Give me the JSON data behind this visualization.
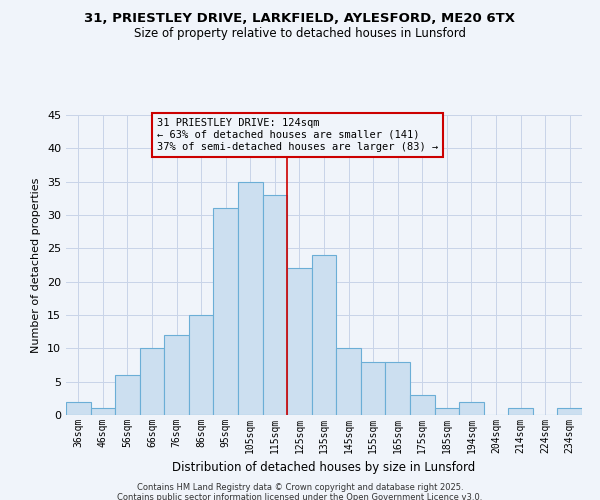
{
  "title_line1": "31, PRIESTLEY DRIVE, LARKFIELD, AYLESFORD, ME20 6TX",
  "title_line2": "Size of property relative to detached houses in Lunsford",
  "xlabel": "Distribution of detached houses by size in Lunsford",
  "ylabel": "Number of detached properties",
  "bar_labels": [
    "36sqm",
    "46sqm",
    "56sqm",
    "66sqm",
    "76sqm",
    "86sqm",
    "95sqm",
    "105sqm",
    "115sqm",
    "125sqm",
    "135sqm",
    "145sqm",
    "155sqm",
    "165sqm",
    "175sqm",
    "185sqm",
    "194sqm",
    "204sqm",
    "214sqm",
    "224sqm",
    "234sqm"
  ],
  "bar_values": [
    2,
    1,
    6,
    10,
    12,
    15,
    31,
    35,
    33,
    22,
    24,
    10,
    8,
    8,
    3,
    1,
    2,
    0,
    1,
    0,
    1
  ],
  "bar_color": "#ccdff0",
  "bar_edge_color": "#6baed6",
  "ylim": [
    0,
    45
  ],
  "yticks": [
    0,
    5,
    10,
    15,
    20,
    25,
    30,
    35,
    40,
    45
  ],
  "property_line_x": 8.5,
  "property_line_color": "#cc0000",
  "annotation_title": "31 PRIESTLEY DRIVE: 124sqm",
  "annotation_line2": "← 63% of detached houses are smaller (141)",
  "annotation_line3": "37% of semi-detached houses are larger (83) →",
  "annotation_box_color": "#cc0000",
  "footer_line1": "Contains HM Land Registry data © Crown copyright and database right 2025.",
  "footer_line2": "Contains public sector information licensed under the Open Government Licence v3.0.",
  "background_color": "#f0f4fa",
  "grid_color": "#c8d4e8"
}
